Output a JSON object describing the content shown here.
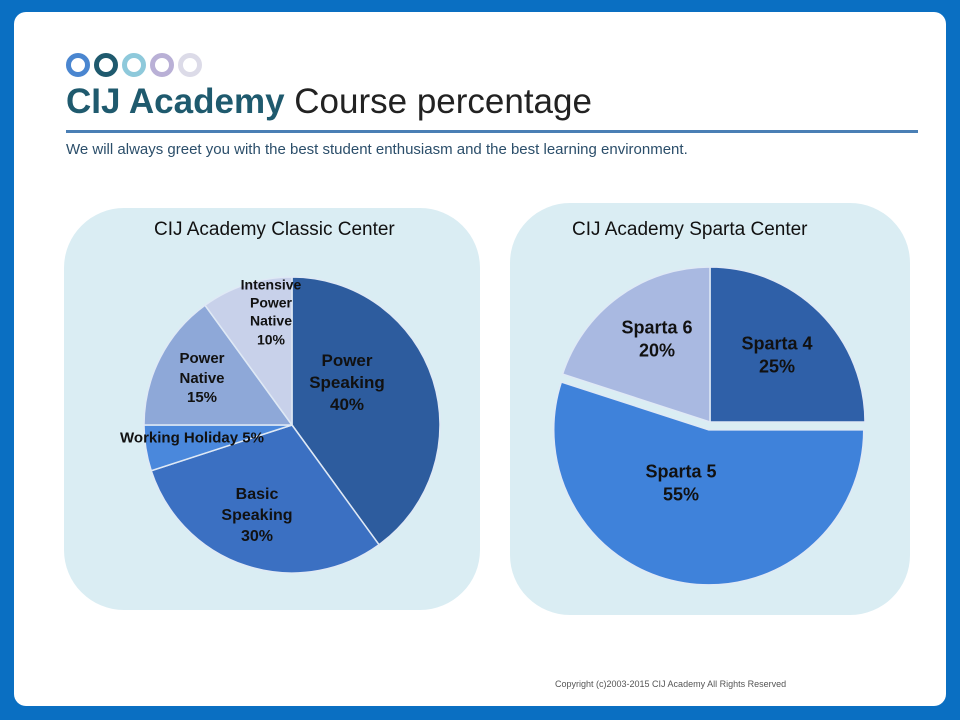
{
  "header": {
    "title_brand": "CIJ Academy",
    "title_rest": "Course percentage",
    "subtitle": "We will always greet you with the best student enthusiasm and the best learning environment.",
    "dot_colors": [
      "#4a86d0",
      "#1f5a6e",
      "#8ec9db",
      "#b9b0d6",
      "#dcdbe8"
    ]
  },
  "chart_data": [
    {
      "type": "pie",
      "title": "CIJ Academy Classic Center",
      "slices": [
        {
          "label": "Power Speaking",
          "lines": [
            "Power",
            "Speaking",
            "40%"
          ],
          "value": 40,
          "color": "#2d5c9e"
        },
        {
          "label": "Basic Speaking",
          "lines": [
            "Basic",
            "Speaking",
            "30%"
          ],
          "value": 30,
          "color": "#3b70c2"
        },
        {
          "label": "Working Holiday",
          "lines": [
            "Working Holiday  5%"
          ],
          "value": 5,
          "color": "#4a88dc"
        },
        {
          "label": "Power Native",
          "lines": [
            "Power",
            "Native",
            "15%"
          ],
          "value": 15,
          "color": "#8ea8d8"
        },
        {
          "label": "Intensive Power Native",
          "lines": [
            "Intensive",
            "Power",
            "Native",
            "10%"
          ],
          "value": 10,
          "color": "#c8d1ea"
        }
      ]
    },
    {
      "type": "pie",
      "title": "CIJ Academy Sparta Center",
      "slices": [
        {
          "label": "Sparta 4",
          "lines": [
            "Sparta 4",
            "25%"
          ],
          "value": 25,
          "color": "#2f60a8"
        },
        {
          "label": "Sparta 5",
          "lines": [
            "Sparta 5",
            "55%"
          ],
          "value": 55,
          "color": "#3f82da"
        },
        {
          "label": "Sparta 6",
          "lines": [
            "Sparta 6",
            "20%"
          ],
          "value": 20,
          "color": "#a9b9e1"
        }
      ]
    }
  ],
  "footer": {
    "copyright": "Copyright (c)2003-2015 CIJ Academy All Rights Reserved"
  }
}
